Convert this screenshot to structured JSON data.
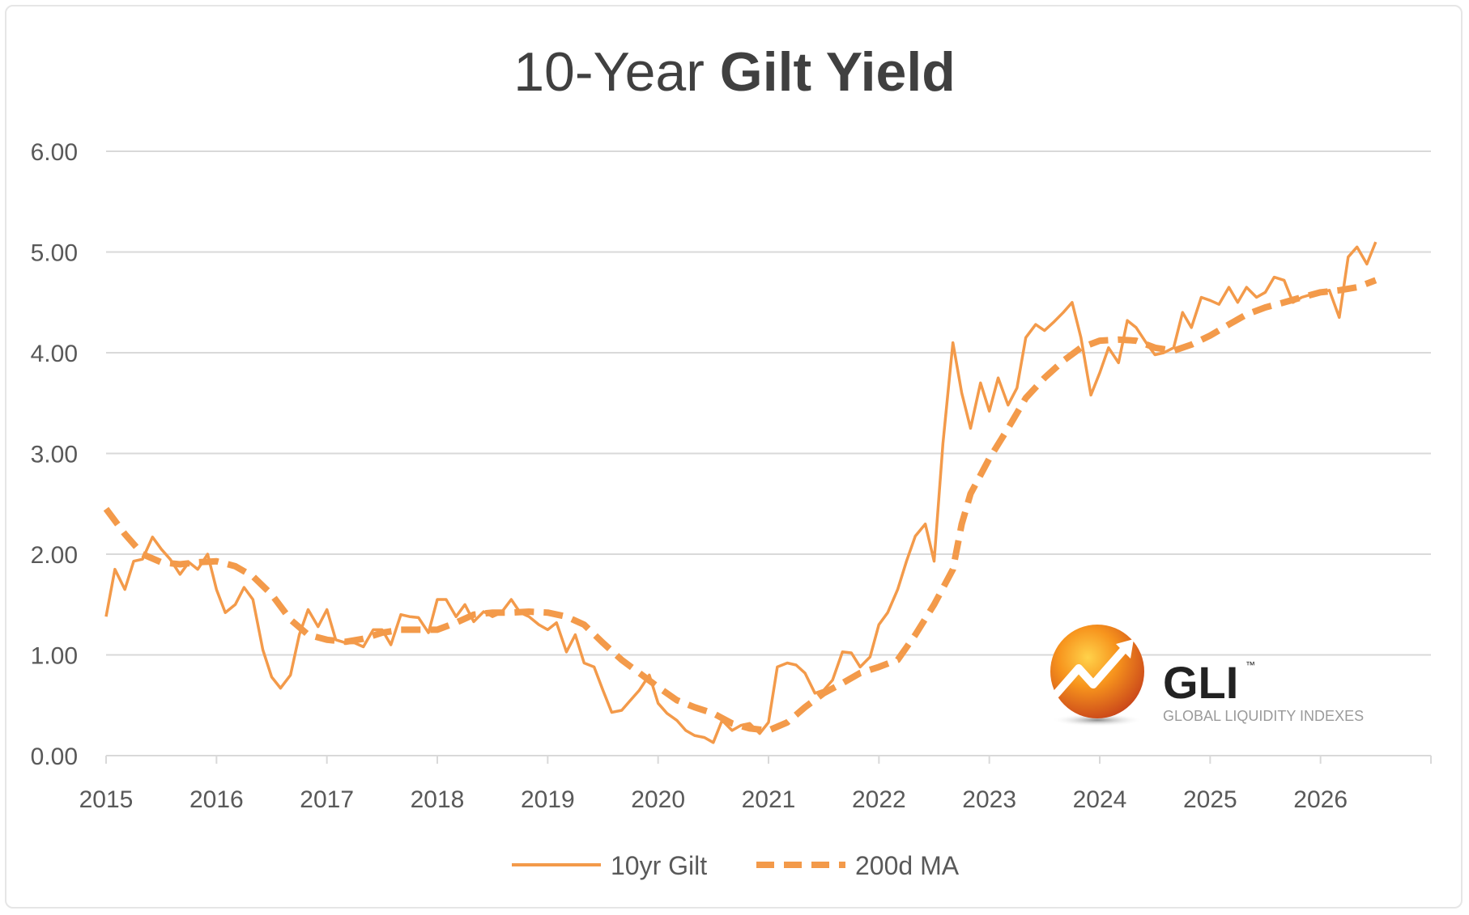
{
  "chart_data": {
    "type": "line",
    "title": {
      "light": "10-Year ",
      "bold": "Gilt Yield"
    },
    "xlabel": "",
    "ylabel": "",
    "xlim": [
      2015,
      2027
    ],
    "ylim": [
      0,
      6
    ],
    "x_ticks": [
      "2015",
      "2016",
      "2017",
      "2018",
      "2019",
      "2020",
      "2021",
      "2022",
      "2023",
      "2024",
      "2025",
      "2026"
    ],
    "y_ticks": [
      "0.00",
      "1.00",
      "2.00",
      "3.00",
      "4.00",
      "5.00",
      "6.00"
    ],
    "grid": true,
    "legend_position": "bottom",
    "series": [
      {
        "name": "10yr Gilt",
        "color": "#f39a4a",
        "style": "solid",
        "points": [
          [
            2015.0,
            1.38
          ],
          [
            2015.08,
            1.85
          ],
          [
            2015.17,
            1.65
          ],
          [
            2015.25,
            1.93
          ],
          [
            2015.33,
            1.95
          ],
          [
            2015.42,
            2.17
          ],
          [
            2015.5,
            2.05
          ],
          [
            2015.58,
            1.95
          ],
          [
            2015.67,
            1.8
          ],
          [
            2015.75,
            1.92
          ],
          [
            2015.83,
            1.85
          ],
          [
            2015.92,
            2.0
          ],
          [
            2016.0,
            1.65
          ],
          [
            2016.08,
            1.42
          ],
          [
            2016.17,
            1.5
          ],
          [
            2016.25,
            1.67
          ],
          [
            2016.33,
            1.55
          ],
          [
            2016.42,
            1.05
          ],
          [
            2016.5,
            0.78
          ],
          [
            2016.58,
            0.67
          ],
          [
            2016.67,
            0.8
          ],
          [
            2016.75,
            1.2
          ],
          [
            2016.83,
            1.45
          ],
          [
            2016.92,
            1.28
          ],
          [
            2017.0,
            1.45
          ],
          [
            2017.08,
            1.15
          ],
          [
            2017.17,
            1.12
          ],
          [
            2017.25,
            1.12
          ],
          [
            2017.33,
            1.08
          ],
          [
            2017.42,
            1.25
          ],
          [
            2017.5,
            1.25
          ],
          [
            2017.58,
            1.1
          ],
          [
            2017.67,
            1.4
          ],
          [
            2017.75,
            1.38
          ],
          [
            2017.83,
            1.37
          ],
          [
            2017.92,
            1.22
          ],
          [
            2018.0,
            1.55
          ],
          [
            2018.08,
            1.55
          ],
          [
            2018.17,
            1.38
          ],
          [
            2018.25,
            1.5
          ],
          [
            2018.33,
            1.33
          ],
          [
            2018.42,
            1.43
          ],
          [
            2018.5,
            1.38
          ],
          [
            2018.58,
            1.42
          ],
          [
            2018.67,
            1.55
          ],
          [
            2018.75,
            1.42
          ],
          [
            2018.83,
            1.38
          ],
          [
            2018.92,
            1.3
          ],
          [
            2019.0,
            1.25
          ],
          [
            2019.08,
            1.32
          ],
          [
            2019.17,
            1.03
          ],
          [
            2019.25,
            1.2
          ],
          [
            2019.33,
            0.92
          ],
          [
            2019.42,
            0.88
          ],
          [
            2019.5,
            0.65
          ],
          [
            2019.58,
            0.43
          ],
          [
            2019.67,
            0.45
          ],
          [
            2019.75,
            0.55
          ],
          [
            2019.83,
            0.65
          ],
          [
            2019.92,
            0.8
          ],
          [
            2020.0,
            0.52
          ],
          [
            2020.08,
            0.42
          ],
          [
            2020.17,
            0.35
          ],
          [
            2020.25,
            0.25
          ],
          [
            2020.33,
            0.2
          ],
          [
            2020.42,
            0.18
          ],
          [
            2020.5,
            0.13
          ],
          [
            2020.58,
            0.35
          ],
          [
            2020.67,
            0.25
          ],
          [
            2020.75,
            0.3
          ],
          [
            2020.83,
            0.32
          ],
          [
            2020.92,
            0.22
          ],
          [
            2021.0,
            0.33
          ],
          [
            2021.08,
            0.88
          ],
          [
            2021.17,
            0.92
          ],
          [
            2021.25,
            0.9
          ],
          [
            2021.33,
            0.82
          ],
          [
            2021.42,
            0.62
          ],
          [
            2021.5,
            0.65
          ],
          [
            2021.58,
            0.75
          ],
          [
            2021.67,
            1.03
          ],
          [
            2021.75,
            1.02
          ],
          [
            2021.83,
            0.88
          ],
          [
            2021.92,
            0.98
          ],
          [
            2022.0,
            1.3
          ],
          [
            2022.08,
            1.42
          ],
          [
            2022.17,
            1.65
          ],
          [
            2022.25,
            1.93
          ],
          [
            2022.33,
            2.18
          ],
          [
            2022.42,
            2.3
          ],
          [
            2022.5,
            1.93
          ],
          [
            2022.58,
            3.1
          ],
          [
            2022.67,
            4.1
          ],
          [
            2022.75,
            3.6
          ],
          [
            2022.83,
            3.25
          ],
          [
            2022.92,
            3.7
          ],
          [
            2023.0,
            3.42
          ],
          [
            2023.08,
            3.75
          ],
          [
            2023.17,
            3.48
          ],
          [
            2023.25,
            3.65
          ],
          [
            2023.33,
            4.15
          ],
          [
            2023.42,
            4.28
          ],
          [
            2023.5,
            4.22
          ],
          [
            2023.58,
            4.3
          ],
          [
            2023.67,
            4.4
          ],
          [
            2023.75,
            4.5
          ],
          [
            2023.83,
            4.15
          ],
          [
            2023.92,
            3.58
          ],
          [
            2024.0,
            3.8
          ],
          [
            2024.08,
            4.05
          ],
          [
            2024.17,
            3.9
          ],
          [
            2024.25,
            4.32
          ],
          [
            2024.33,
            4.25
          ],
          [
            2024.42,
            4.1
          ],
          [
            2024.5,
            3.98
          ],
          [
            2024.58,
            4.0
          ],
          [
            2024.67,
            4.05
          ],
          [
            2024.75,
            4.4
          ],
          [
            2024.83,
            4.25
          ],
          [
            2024.92,
            4.55
          ],
          [
            2025.0,
            4.52
          ],
          [
            2025.08,
            4.48
          ],
          [
            2025.17,
            4.65
          ],
          [
            2025.25,
            4.5
          ],
          [
            2025.33,
            4.65
          ],
          [
            2025.42,
            4.55
          ],
          [
            2025.5,
            4.6
          ],
          [
            2025.58,
            4.75
          ],
          [
            2025.67,
            4.72
          ],
          [
            2025.75,
            4.5
          ],
          [
            2025.83,
            4.55
          ],
          [
            2025.92,
            4.58
          ],
          [
            2026.0,
            4.6
          ],
          [
            2026.08,
            4.62
          ],
          [
            2026.17,
            4.35
          ],
          [
            2026.25,
            4.95
          ],
          [
            2026.33,
            5.05
          ],
          [
            2026.42,
            4.88
          ],
          [
            2026.5,
            5.1
          ]
        ]
      },
      {
        "name": "200d MA",
        "color": "#f39a4a",
        "style": "dashed",
        "points": [
          [
            2015.0,
            2.45
          ],
          [
            2015.17,
            2.2
          ],
          [
            2015.33,
            2.0
          ],
          [
            2015.5,
            1.92
          ],
          [
            2015.67,
            1.9
          ],
          [
            2015.83,
            1.92
          ],
          [
            2016.0,
            1.93
          ],
          [
            2016.17,
            1.88
          ],
          [
            2016.33,
            1.78
          ],
          [
            2016.5,
            1.6
          ],
          [
            2016.67,
            1.35
          ],
          [
            2016.83,
            1.2
          ],
          [
            2017.0,
            1.15
          ],
          [
            2017.17,
            1.13
          ],
          [
            2017.33,
            1.16
          ],
          [
            2017.5,
            1.22
          ],
          [
            2017.67,
            1.25
          ],
          [
            2017.83,
            1.25
          ],
          [
            2018.0,
            1.25
          ],
          [
            2018.17,
            1.32
          ],
          [
            2018.33,
            1.4
          ],
          [
            2018.5,
            1.42
          ],
          [
            2018.67,
            1.42
          ],
          [
            2018.83,
            1.43
          ],
          [
            2019.0,
            1.42
          ],
          [
            2019.17,
            1.38
          ],
          [
            2019.33,
            1.3
          ],
          [
            2019.5,
            1.12
          ],
          [
            2019.67,
            0.95
          ],
          [
            2019.83,
            0.82
          ],
          [
            2020.0,
            0.68
          ],
          [
            2020.17,
            0.55
          ],
          [
            2020.33,
            0.48
          ],
          [
            2020.5,
            0.42
          ],
          [
            2020.67,
            0.32
          ],
          [
            2020.83,
            0.27
          ],
          [
            2021.0,
            0.25
          ],
          [
            2021.17,
            0.33
          ],
          [
            2021.33,
            0.48
          ],
          [
            2021.5,
            0.62
          ],
          [
            2021.67,
            0.72
          ],
          [
            2021.83,
            0.82
          ],
          [
            2022.0,
            0.88
          ],
          [
            2022.17,
            0.95
          ],
          [
            2022.33,
            1.2
          ],
          [
            2022.5,
            1.5
          ],
          [
            2022.67,
            1.85
          ],
          [
            2022.75,
            2.3
          ],
          [
            2022.83,
            2.6
          ],
          [
            2023.0,
            2.95
          ],
          [
            2023.17,
            3.25
          ],
          [
            2023.33,
            3.55
          ],
          [
            2023.5,
            3.75
          ],
          [
            2023.67,
            3.92
          ],
          [
            2023.83,
            4.05
          ],
          [
            2024.0,
            4.12
          ],
          [
            2024.17,
            4.13
          ],
          [
            2024.33,
            4.12
          ],
          [
            2024.5,
            4.05
          ],
          [
            2024.67,
            4.02
          ],
          [
            2024.83,
            4.08
          ],
          [
            2025.0,
            4.17
          ],
          [
            2025.17,
            4.28
          ],
          [
            2025.33,
            4.38
          ],
          [
            2025.5,
            4.45
          ],
          [
            2025.67,
            4.5
          ],
          [
            2025.83,
            4.55
          ],
          [
            2026.0,
            4.6
          ],
          [
            2026.17,
            4.62
          ],
          [
            2026.33,
            4.65
          ],
          [
            2026.5,
            4.72
          ]
        ]
      }
    ]
  },
  "logo": {
    "name": "GLI",
    "tagline": "GLOBAL LIQUIDITY INDEXES",
    "tm": "™"
  },
  "colors": {
    "line": "#f39a4a",
    "grid": "#d9d9d9",
    "axis_text": "#595959",
    "title": "#404040"
  }
}
